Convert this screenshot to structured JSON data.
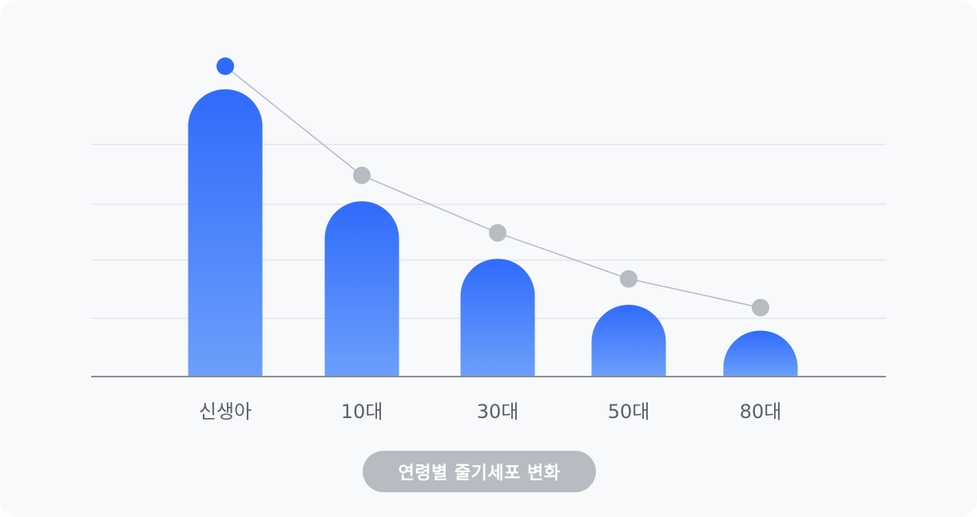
{
  "caption": "연령별 줄기세포 변화",
  "colors": {
    "bar_top": "#2f6bfb",
    "bar_bottom": "#6c9ffb",
    "line": "#b5bac0",
    "marker_grey": "#b7bcc2",
    "marker_accent": "#2f6bfb",
    "grid": "#e3e6ea",
    "axis": "#8a8f96"
  },
  "chart_data": {
    "type": "bar",
    "title": "",
    "xlabel": "",
    "ylabel": "",
    "categories": [
      "신생아",
      "10대",
      "30대",
      "50대",
      "80대"
    ],
    "series": [
      {
        "values": [
          100,
          61,
          41,
          25,
          16
        ]
      }
    ],
    "trend_line": [
      108,
      70,
      50,
      34,
      24
    ],
    "ylim": [
      0,
      108
    ],
    "grid": true,
    "legend": "none"
  }
}
